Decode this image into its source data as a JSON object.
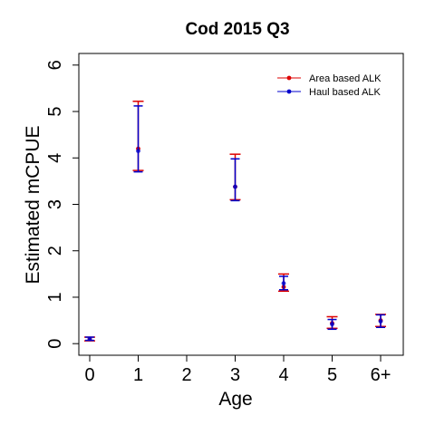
{
  "chart_data": {
    "type": "scatter",
    "title": "Cod 2015 Q3",
    "xlabel": "Age",
    "ylabel": "Estimated mCPUE",
    "categories": [
      "0",
      "1",
      "2",
      "3",
      "4",
      "5",
      "6+"
    ],
    "ylim": [
      -0.25,
      6.25
    ],
    "yticks": [
      "0",
      "1",
      "2",
      "3",
      "4",
      "5",
      "6"
    ],
    "grid": false,
    "legend_position": "top-right",
    "series": [
      {
        "name": "Area based ALK",
        "color": "#dd0000",
        "points": [
          {
            "x": "0",
            "y": 0.1,
            "lo": 0.06,
            "hi": 0.14
          },
          {
            "x": "1",
            "y": 4.2,
            "lo": 3.73,
            "hi": 5.22
          },
          {
            "x": "3",
            "y": 3.38,
            "lo": 3.1,
            "hi": 4.08
          },
          {
            "x": "4",
            "y": 1.22,
            "lo": 1.13,
            "hi": 1.5
          },
          {
            "x": "5",
            "y": 0.44,
            "lo": 0.33,
            "hi": 0.58
          },
          {
            "x": "6+",
            "y": 0.5,
            "lo": 0.37,
            "hi": 0.63
          }
        ]
      },
      {
        "name": "Haul based ALK",
        "color": "#0000cc",
        "points": [
          {
            "x": "0",
            "y": 0.1,
            "lo": 0.07,
            "hi": 0.14
          },
          {
            "x": "1",
            "y": 4.15,
            "lo": 3.7,
            "hi": 5.12
          },
          {
            "x": "3",
            "y": 3.38,
            "lo": 3.08,
            "hi": 3.98
          },
          {
            "x": "4",
            "y": 1.3,
            "lo": 1.16,
            "hi": 1.45
          },
          {
            "x": "5",
            "y": 0.42,
            "lo": 0.31,
            "hi": 0.52
          },
          {
            "x": "6+",
            "y": 0.48,
            "lo": 0.35,
            "hi": 0.62
          }
        ]
      }
    ]
  }
}
